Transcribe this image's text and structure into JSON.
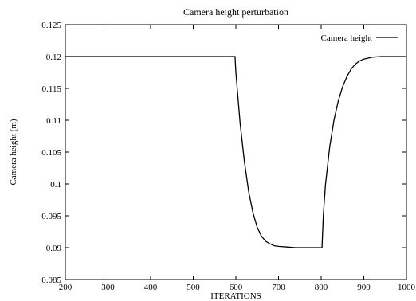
{
  "chart_data": {
    "type": "line",
    "title": "Camera height perturbation",
    "xlabel": "ITERATIONS",
    "ylabel": "Camera height (m)",
    "xlim": [
      200,
      1000
    ],
    "ylim": [
      0.085,
      0.125
    ],
    "xticks": [
      200,
      300,
      400,
      500,
      600,
      700,
      800,
      900,
      1000
    ],
    "yticks": [
      0.085,
      0.09,
      0.095,
      0.1,
      0.105,
      0.11,
      0.115,
      0.12,
      0.125
    ],
    "ytick_labels": [
      "0.085",
      "0.09",
      "0.095",
      "0.1",
      "0.105",
      "0.11",
      "0.115",
      "0.12",
      "0.125"
    ],
    "grid": false,
    "legend_position": "top-right",
    "series": [
      {
        "name": "Camera height",
        "color": "#000000",
        "x": [
          200,
          300,
          400,
          500,
          598,
          600,
          605,
          610,
          620,
          630,
          640,
          650,
          660,
          670,
          680,
          690,
          700,
          720,
          740,
          760,
          780,
          802,
          805,
          810,
          820,
          830,
          840,
          850,
          860,
          870,
          880,
          890,
          900,
          920,
          940,
          960,
          980,
          1000
        ],
        "y": [
          0.12,
          0.12,
          0.12,
          0.12,
          0.12,
          0.1175,
          0.1135,
          0.1095,
          0.1035,
          0.0988,
          0.0955,
          0.0932,
          0.0918,
          0.091,
          0.0906,
          0.0903,
          0.0902,
          0.0901,
          0.09,
          0.09,
          0.09,
          0.09,
          0.095,
          0.0998,
          0.1058,
          0.11,
          0.113,
          0.1152,
          0.1168,
          0.118,
          0.1188,
          0.1193,
          0.1196,
          0.1199,
          0.12,
          0.12,
          0.12,
          0.12
        ]
      }
    ]
  }
}
